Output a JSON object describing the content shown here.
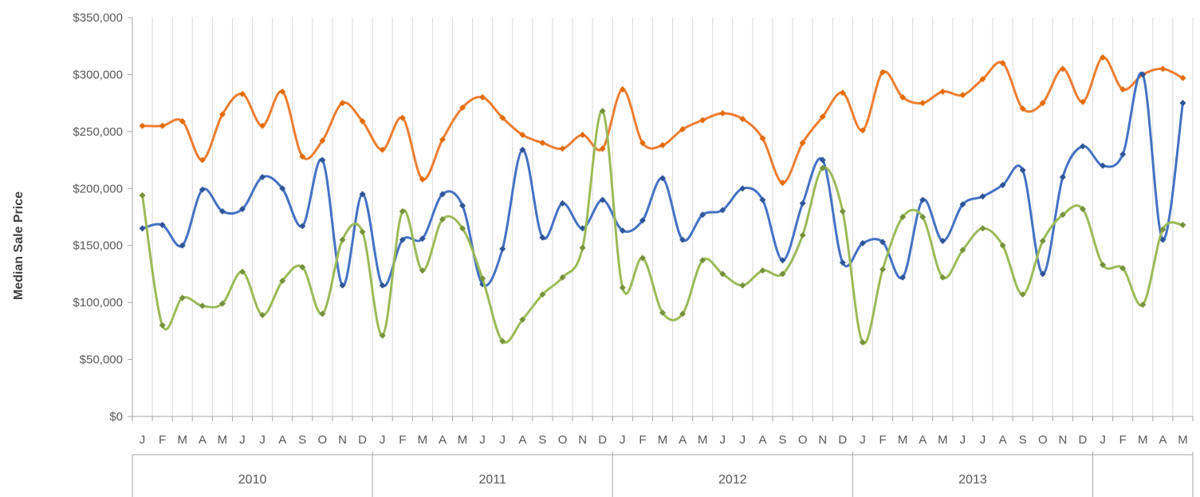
{
  "chart_data": {
    "type": "line",
    "title": "",
    "xlabel": "",
    "ylabel": "Median Sale Price",
    "ylim": [
      0,
      350000
    ],
    "ytick_values": [
      0,
      50000,
      100000,
      150000,
      200000,
      250000,
      300000,
      350000
    ],
    "ytick_labels": [
      "$0",
      "$50,000",
      "$100,000",
      "$150,000",
      "$200,000",
      "$250,000",
      "$300,000",
      "$350,000"
    ],
    "grid": "vertical gridlines at each month",
    "legend": "none",
    "months": [
      "J",
      "F",
      "M",
      "A",
      "M",
      "J",
      "J",
      "A",
      "S",
      "O",
      "N",
      "D",
      "J",
      "F",
      "M",
      "A",
      "M",
      "J",
      "J",
      "A",
      "S",
      "O",
      "N",
      "D",
      "J",
      "F",
      "M",
      "A",
      "M",
      "J",
      "J",
      "A",
      "S",
      "O",
      "N",
      "D",
      "J",
      "F",
      "M",
      "A",
      "M",
      "J",
      "J",
      "A",
      "S",
      "O",
      "N",
      "D",
      "J",
      "F",
      "M",
      "A",
      "M"
    ],
    "years": [
      {
        "label": "2010",
        "months": 12
      },
      {
        "label": "2011",
        "months": 12
      },
      {
        "label": "2012",
        "months": 12
      },
      {
        "label": "2013",
        "months": 12
      },
      {
        "label": "",
        "months": 5
      }
    ],
    "series": [
      {
        "color": "#ED7D31",
        "marker_color": "#E36C0A",
        "values": [
          255000,
          255000,
          259000,
          225000,
          265000,
          283000,
          255000,
          285000,
          228000,
          242000,
          275000,
          259000,
          234000,
          262000,
          208000,
          243000,
          271000,
          280000,
          262000,
          247000,
          240000,
          235000,
          247000,
          235000,
          287000,
          240000,
          238000,
          252000,
          260000,
          266000,
          261000,
          244000,
          205000,
          240000,
          263000,
          284000,
          251000,
          302000,
          280000,
          275000,
          285000,
          282000,
          296000,
          310000,
          270000,
          275000,
          305000,
          276000,
          315000,
          287000,
          300000,
          305000,
          297000
        ]
      },
      {
        "color": "#4472C4",
        "marker_color": "#2E5597",
        "values": [
          165000,
          168000,
          150000,
          199000,
          180000,
          182000,
          210000,
          200000,
          167000,
          225000,
          115000,
          195000,
          115000,
          155000,
          156000,
          195000,
          185000,
          116000,
          147000,
          234000,
          157000,
          187000,
          165000,
          190000,
          163000,
          172000,
          209000,
          155000,
          177000,
          181000,
          200000,
          190000,
          137000,
          187000,
          225000,
          135000,
          152000,
          153000,
          122000,
          190000,
          154000,
          186000,
          193000,
          203000,
          216000,
          125000,
          210000,
          237000,
          220000,
          230000,
          300000,
          155000,
          275000
        ]
      },
      {
        "color": "#9BBB59",
        "marker_color": "#76923C",
        "values": [
          194000,
          80000,
          104000,
          97000,
          99000,
          127000,
          89000,
          119000,
          131000,
          90000,
          155000,
          162000,
          71000,
          180000,
          128000,
          173000,
          165000,
          121000,
          66000,
          85000,
          107000,
          122000,
          148000,
          268000,
          113000,
          139000,
          91000,
          90000,
          137000,
          125000,
          115000,
          128000,
          125000,
          159000,
          218000,
          180000,
          65000,
          129000,
          175000,
          175000,
          122000,
          146000,
          165000,
          150000,
          107000,
          154000,
          177000,
          182000,
          133000,
          130000,
          98000,
          164000,
          168000
        ]
      }
    ]
  }
}
